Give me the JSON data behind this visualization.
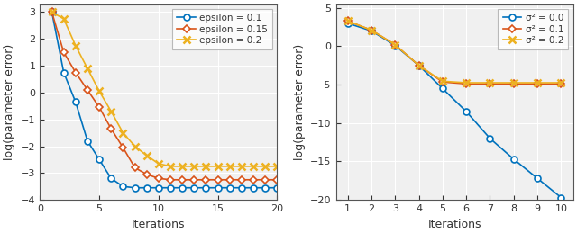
{
  "left": {
    "xlabel": "Iterations",
    "ylabel": "log(parameter error)",
    "xlim": [
      0,
      20
    ],
    "ylim": [
      -4,
      3.3
    ],
    "yticks": [
      -4,
      -3,
      -2,
      -1,
      0,
      1,
      2,
      3
    ],
    "xticks": [
      0,
      5,
      10,
      15,
      20
    ],
    "series": [
      {
        "label": "epsilon = 0.1",
        "color": "#0072BD",
        "marker": "o",
        "x": [
          1,
          2,
          3,
          4,
          5,
          6,
          7,
          8,
          9,
          10,
          11,
          12,
          13,
          14,
          15,
          16,
          17,
          18,
          19,
          20
        ],
        "y": [
          3.0,
          0.75,
          -0.35,
          -1.8,
          -2.5,
          -3.2,
          -3.5,
          -3.55,
          -3.55,
          -3.55,
          -3.55,
          -3.55,
          -3.55,
          -3.55,
          -3.55,
          -3.55,
          -3.55,
          -3.55,
          -3.55,
          -3.55
        ]
      },
      {
        "label": "epsilon = 0.15",
        "color": "#D95319",
        "marker": "D",
        "x": [
          1,
          2,
          3,
          4,
          5,
          6,
          7,
          8,
          9,
          10,
          11,
          12,
          13,
          14,
          15,
          16,
          17,
          18,
          19,
          20
        ],
        "y": [
          3.0,
          1.5,
          0.75,
          0.1,
          -0.55,
          -1.35,
          -2.05,
          -2.8,
          -3.05,
          -3.2,
          -3.25,
          -3.25,
          -3.25,
          -3.25,
          -3.25,
          -3.25,
          -3.25,
          -3.25,
          -3.25,
          -3.25
        ]
      },
      {
        "label": "epsilon = 0.2",
        "color": "#EDB120",
        "marker": "x",
        "x": [
          1,
          2,
          3,
          4,
          5,
          6,
          7,
          8,
          9,
          10,
          11,
          12,
          13,
          14,
          15,
          16,
          17,
          18,
          19,
          20
        ],
        "y": [
          3.0,
          2.75,
          1.75,
          0.9,
          0.05,
          -0.7,
          -1.5,
          -2.0,
          -2.35,
          -2.65,
          -2.75,
          -2.75,
          -2.75,
          -2.75,
          -2.75,
          -2.75,
          -2.75,
          -2.75,
          -2.75,
          -2.75
        ]
      }
    ]
  },
  "right": {
    "xlabel": "Iterations",
    "ylabel": "log(parameter error)",
    "xlim": [
      0.5,
      10.5
    ],
    "ylim": [
      -20,
      5.5
    ],
    "yticks": [
      -20,
      -15,
      -10,
      -5,
      0,
      5
    ],
    "xticks": [
      1,
      2,
      3,
      4,
      5,
      6,
      7,
      8,
      9,
      10
    ],
    "series": [
      {
        "label": "σ² = 0.0",
        "color": "#0072BD",
        "marker": "o",
        "x": [
          1,
          2,
          3,
          4,
          5,
          6,
          7,
          8,
          9,
          10
        ],
        "y": [
          3.0,
          2.0,
          0.1,
          -2.5,
          -5.5,
          -8.5,
          -12.0,
          -14.7,
          -17.2,
          -19.7
        ]
      },
      {
        "label": "σ² = 0.1",
        "color": "#D95319",
        "marker": "D",
        "x": [
          1,
          2,
          3,
          4,
          5,
          6,
          7,
          8,
          9,
          10
        ],
        "y": [
          3.3,
          2.1,
          0.2,
          -2.5,
          -4.65,
          -4.9,
          -4.9,
          -4.9,
          -4.9,
          -4.9
        ]
      },
      {
        "label": "σ² = 0.2",
        "color": "#EDB120",
        "marker": "x",
        "x": [
          1,
          2,
          3,
          4,
          5,
          6,
          7,
          8,
          9,
          10
        ],
        "y": [
          3.3,
          2.1,
          0.2,
          -2.5,
          -4.55,
          -4.75,
          -4.75,
          -4.75,
          -4.75,
          -4.75
        ]
      }
    ]
  },
  "bg_color": "#F0F0F0",
  "grid_color": "#FFFFFF",
  "line_width": 1.2,
  "marker_size": 5
}
